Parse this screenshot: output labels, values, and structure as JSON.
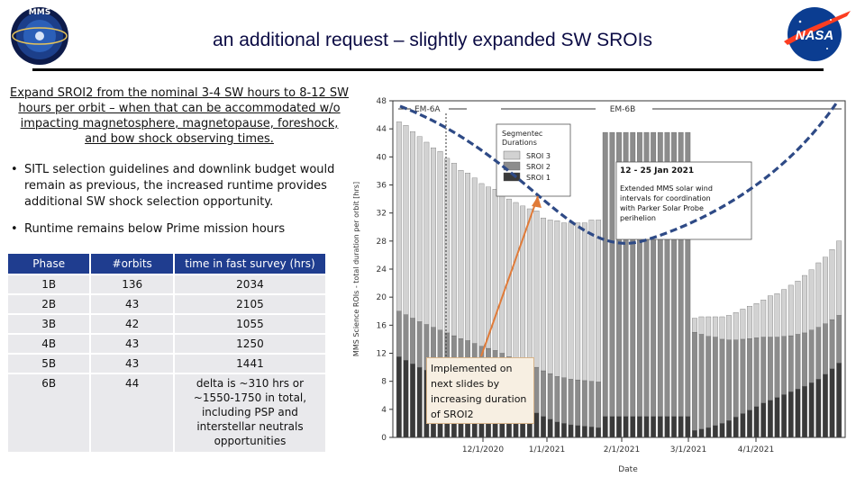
{
  "slide": {
    "title": "an additional request – slightly expanded SW SROIs",
    "intro": "Expand SROI2 from the nominal 3-4 SW hours to 8-12 SW hours per orbit – when that can be accommodated w/o impacting magnetosphere, magnetopause, foreshock, and bow shock observing times.",
    "bullets": [
      "SITL selection guidelines and downlink budget would remain as previous, the increased runtime provides additional SW shock selection opportunity.",
      "Runtime remains below Prime mission hours"
    ],
    "bullet_char": "•",
    "logos": {
      "left": "mms-mission-logo",
      "right": "nasa-logo",
      "right_text": "NASA"
    }
  },
  "table": {
    "headers": [
      "Phase",
      "#orbits",
      "time in fast survey (hrs)"
    ],
    "rows": [
      [
        "1B",
        "136",
        "2034"
      ],
      [
        "2B",
        "43",
        "2105"
      ],
      [
        "3B",
        "42",
        "1055"
      ],
      [
        "4B",
        "43",
        "1250"
      ],
      [
        "5B",
        "43",
        "1441"
      ],
      [
        "6B",
        "44",
        "delta is ~310 hrs or ~1550-1750 in total, including PSP and interstellar neutrals opportunities"
      ]
    ]
  },
  "callout": {
    "text": "Implemented on next slides by increasing duration of SROI2"
  },
  "colors": {
    "header_blue": "#1f3d8f",
    "dashed_curve": "#2e4a86",
    "arrow": "#e07b39",
    "sroi1": "#3a3a3a",
    "sroi2": "#8c8c8c",
    "sroi3": "#d2d2d2"
  },
  "chart_data": {
    "type": "bar",
    "stacked": true,
    "ylabel": "MMS Science ROIs - total duration per orbit [hrs]",
    "xlabel": "Date",
    "ylim": [
      0,
      48
    ],
    "yticks": [
      "0",
      "4",
      "8",
      "12",
      "16",
      "20",
      "24",
      "28",
      "32",
      "36",
      "40",
      "44",
      "48"
    ],
    "xticks": [
      "12/1/2020",
      "1/1/2021",
      "2/1/2021",
      "3/1/2021",
      "4/1/2021"
    ],
    "regions": [
      "EM-6A",
      "EM-6B"
    ],
    "legend": {
      "title": "Segmentec Durations",
      "entries": [
        "SROI 3",
        "SROI 2",
        "SROI 1"
      ],
      "position": "top"
    },
    "annotation": {
      "date": "12 - 25 Jan 2021",
      "text": "Extended MMS solar wind intervals for coordination with Parker Solar Probe perihelion"
    },
    "series": [
      {
        "name": "SROI 1",
        "values": [
          11.5,
          11,
          10.5,
          10,
          9.6,
          9.2,
          8.8,
          8.4,
          8,
          7.6,
          7.3,
          6.9,
          6.5,
          6.2,
          5.9,
          5.5,
          5,
          4.6,
          4.2,
          3.8,
          3.5,
          3,
          2.6,
          2.2,
          2,
          1.8,
          1.7,
          1.6,
          1.5,
          1.4,
          3,
          3,
          3,
          3,
          3,
          3,
          3,
          3,
          3,
          3,
          3,
          3,
          3,
          1,
          1.2,
          1.4,
          1.7,
          2,
          2.4,
          2.9,
          3.4,
          3.9,
          4.4,
          4.9,
          5.3,
          5.7,
          6.1,
          6.5,
          6.9,
          7.3,
          7.8,
          8.3,
          9,
          9.8,
          10.6
        ]
      },
      {
        "name": "SROI 2",
        "values": [
          6.5,
          6.5,
          6.5,
          6.5,
          6.5,
          6.5,
          6.5,
          6.5,
          6.5,
          6.5,
          6.5,
          6.5,
          6.5,
          6.5,
          6.5,
          6.5,
          6.5,
          6.5,
          6.5,
          6.5,
          6.5,
          6.5,
          6.5,
          6.5,
          6.5,
          6.5,
          6.5,
          6.5,
          6.5,
          6.5,
          40.5,
          40.5,
          40.5,
          40.5,
          40.5,
          40.5,
          40.5,
          40.5,
          40.5,
          40.5,
          40.5,
          40.5,
          40.5,
          14,
          13.5,
          13,
          12.6,
          12,
          11.5,
          11,
          10.6,
          10.2,
          9.8,
          9.4,
          9,
          8.6,
          8.3,
          8,
          7.8,
          7.6,
          7.5,
          7.4,
          7.2,
          7,
          6.8
        ]
      },
      {
        "name": "SROI 3",
        "values": [
          27,
          27,
          26.6,
          26.4,
          26,
          25.6,
          25.5,
          24.9,
          24.6,
          24,
          23.9,
          23.6,
          23.2,
          23,
          23,
          22.5,
          22.5,
          22.4,
          22.3,
          22.3,
          22.3,
          21.8,
          21.9,
          22.2,
          22.1,
          22.3,
          22.4,
          22.5,
          23,
          23.1,
          0,
          0,
          0,
          0,
          0,
          0,
          0,
          0,
          0,
          0,
          0,
          0,
          0,
          2,
          2.5,
          2.8,
          2.9,
          3.2,
          3.5,
          3.9,
          4.3,
          4.6,
          4.9,
          5.3,
          5.9,
          6.2,
          6.7,
          7.2,
          7.6,
          8.2,
          8.6,
          9.2,
          9.5,
          10,
          10.6
        ]
      }
    ],
    "curve_label": "dashed envelope"
  }
}
